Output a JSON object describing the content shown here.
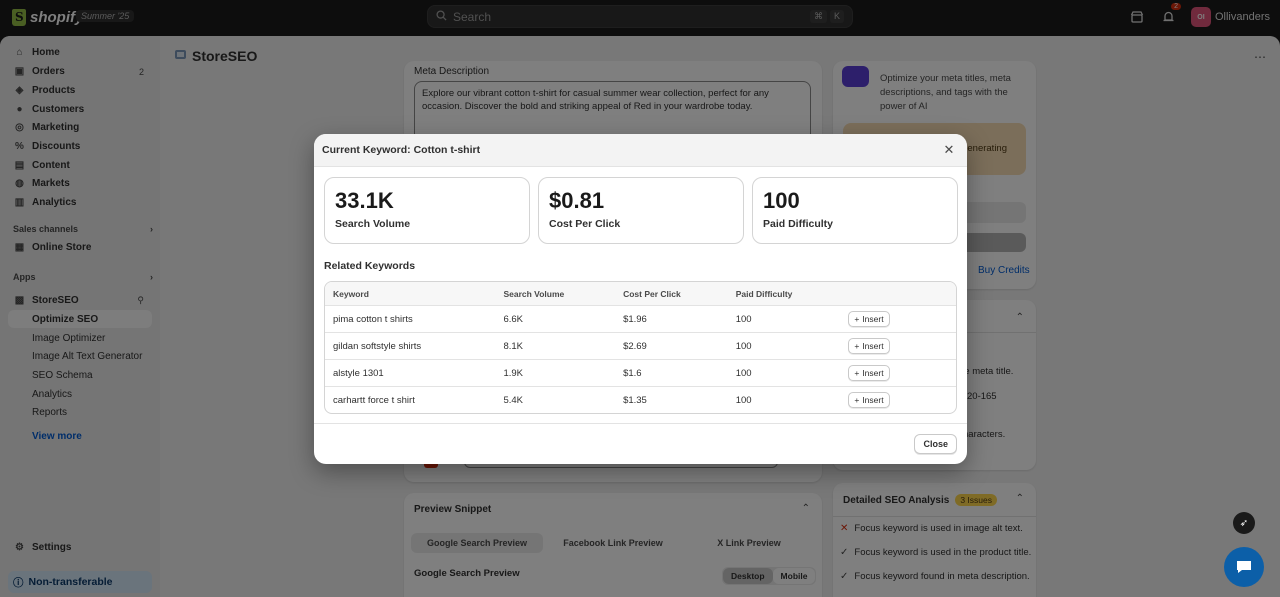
{
  "topbar": {
    "brand": "shopify",
    "edition": "Summer '25",
    "search_placeholder": "Search",
    "shortcut": [
      "⌘",
      "K"
    ],
    "notification_count": "2",
    "avatar_initials": "OI",
    "store_name": "Ollivanders"
  },
  "sidebar": {
    "items": [
      {
        "label": "Home",
        "icon": "home-icon"
      },
      {
        "label": "Orders",
        "icon": "orders-icon",
        "count": "2"
      },
      {
        "label": "Products",
        "icon": "tag-icon"
      },
      {
        "label": "Customers",
        "icon": "person-icon"
      },
      {
        "label": "Marketing",
        "icon": "target-icon"
      },
      {
        "label": "Discounts",
        "icon": "discount-icon"
      },
      {
        "label": "Content",
        "icon": "content-icon"
      },
      {
        "label": "Markets",
        "icon": "globe-icon"
      },
      {
        "label": "Analytics",
        "icon": "chart-icon"
      }
    ],
    "sales_channels_label": "Sales channels",
    "online_store": "Online Store",
    "apps_label": "Apps",
    "app_name": "StoreSEO",
    "app_subitems": [
      "Optimize SEO",
      "Image Optimizer",
      "Image Alt Text Generator",
      "SEO Schema",
      "Analytics",
      "Reports"
    ],
    "view_more": "View more",
    "settings": "Settings",
    "non_transferable": "Non-transferable"
  },
  "main": {
    "app_title": "StoreSEO",
    "meta_description_label": "Meta Description",
    "meta_description": "Explore our vibrant cotton t-shirt for casual summer wear collection, perfect for any occasion. Discover the bold and striking appeal of Red in your wardrobe today.",
    "ai_text": "Optimize your meta titles, meta descriptions, and tags with the power of AI",
    "ai_partial": "generating",
    "buy_credits": "Buy Credits",
    "partial_texts": [
      "he meta title.",
      "20-165",
      "haracters."
    ],
    "preview_snippet": "Preview Snippet",
    "preview_tabs": [
      "Google Search Preview",
      "Facebook Link Preview",
      "X Link Preview"
    ],
    "google_preview_label": "Google Search Preview",
    "device_tabs": [
      "Desktop",
      "Mobile"
    ],
    "detailed_seo": "Detailed SEO Analysis",
    "issues_badge": "3 Issues",
    "checks": [
      {
        "text": "Focus keyword is used in image alt text.",
        "status": "fail"
      },
      {
        "text": "Focus keyword is used in the product title.",
        "status": "pass"
      },
      {
        "text": "Focus keyword found in meta description.",
        "status": "pass"
      }
    ]
  },
  "modal": {
    "title": "Current Keyword: Cotton t-shirt",
    "stats": [
      {
        "value": "33.1K",
        "label": "Search Volume"
      },
      {
        "value": "$0.81",
        "label": "Cost Per Click"
      },
      {
        "value": "100",
        "label": "Paid Difficulty"
      }
    ],
    "related_title": "Related Keywords",
    "columns": [
      "Keyword",
      "Search Volume",
      "Cost Per Click",
      "Paid Difficulty"
    ],
    "rows": [
      {
        "keyword": "pima cotton t shirts",
        "volume": "6.6K",
        "cpc": "$1.96",
        "difficulty": "100"
      },
      {
        "keyword": "gildan softstyle shirts",
        "volume": "8.1K",
        "cpc": "$2.69",
        "difficulty": "100"
      },
      {
        "keyword": "alstyle 1301",
        "volume": "1.9K",
        "cpc": "$1.6",
        "difficulty": "100"
      },
      {
        "keyword": "carhartt force t shirt",
        "volume": "5.4K",
        "cpc": "$1.35",
        "difficulty": "100"
      }
    ],
    "insert_label": "Insert",
    "close_label": "Close"
  }
}
